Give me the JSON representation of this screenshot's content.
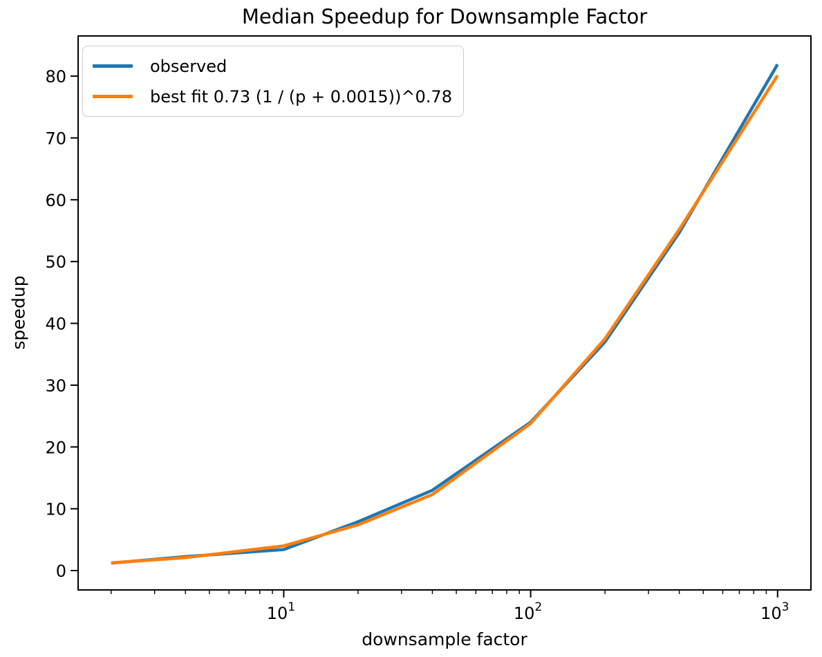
{
  "chart_data": {
    "type": "line",
    "title": "Median Speedup for Downsample Factor",
    "xlabel": "downsample factor",
    "ylabel": "speedup",
    "x_scale": "log",
    "grid": false,
    "legend_position": "upper left",
    "x": [
      2,
      4,
      10,
      20,
      40,
      100,
      200,
      400,
      1000
    ],
    "series": [
      {
        "name": "observed",
        "color": "#1f77b4",
        "values": [
          1.2,
          2.25,
          3.4,
          7.9,
          13.0,
          24.0,
          37.0,
          54.7,
          81.9
        ]
      },
      {
        "name": "best fit 0.73 (1 / (p + 0.0015))^0.78",
        "color": "#ff7f0e",
        "values": [
          1.25,
          2.1,
          4.0,
          7.4,
          12.3,
          23.8,
          37.5,
          55.2,
          80.1
        ]
      }
    ],
    "xlim": [
      1.47,
      1365
    ],
    "ylim": [
      -3.13,
      86.5
    ],
    "yticks": [
      0,
      10,
      20,
      30,
      40,
      50,
      60,
      70,
      80
    ],
    "xticks": [
      {
        "value": 10,
        "base": "10",
        "exp": "1"
      },
      {
        "value": 100,
        "base": "10",
        "exp": "2"
      },
      {
        "value": 1000,
        "base": "10",
        "exp": "3"
      }
    ],
    "xticks_minor": [
      2,
      3,
      4,
      5,
      6,
      7,
      8,
      9,
      20,
      30,
      40,
      50,
      60,
      70,
      80,
      90,
      200,
      300,
      400,
      500,
      600,
      700,
      800,
      900
    ]
  }
}
